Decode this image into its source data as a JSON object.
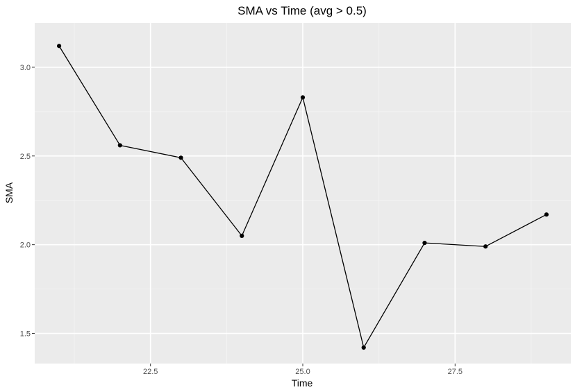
{
  "chart_data": {
    "type": "line",
    "title": "SMA vs Time (avg > 0.5)",
    "xlabel": "Time",
    "ylabel": "SMA",
    "xlim": [
      20.6,
      29.4
    ],
    "ylim": [
      1.33,
      3.25
    ],
    "xticks": [
      22.5,
      25.0,
      27.5
    ],
    "xtick_labels": [
      "22.5",
      "25.0",
      "27.5"
    ],
    "xminor": [
      21.25,
      23.75,
      26.25,
      28.75
    ],
    "yticks": [
      1.5,
      2.0,
      2.5,
      3.0
    ],
    "ytick_labels": [
      "1.5",
      "2.0",
      "2.5",
      "3.0"
    ],
    "yminor": [
      1.75,
      2.25,
      2.75
    ],
    "grid": true,
    "series": [
      {
        "x": [
          21,
          22,
          23,
          24,
          25,
          26,
          27,
          28,
          29
        ],
        "y": [
          3.12,
          2.56,
          2.49,
          2.05,
          2.83,
          1.42,
          2.01,
          1.99,
          2.17
        ]
      }
    ],
    "colors": {
      "panel_background": "#ebebeb",
      "grid_major": "#ffffff",
      "grid_minor": "#f5f5f5",
      "line": "#000000",
      "point": "#000000",
      "tick_label": "#4d4d4d",
      "tick_mark": "#333333"
    }
  }
}
